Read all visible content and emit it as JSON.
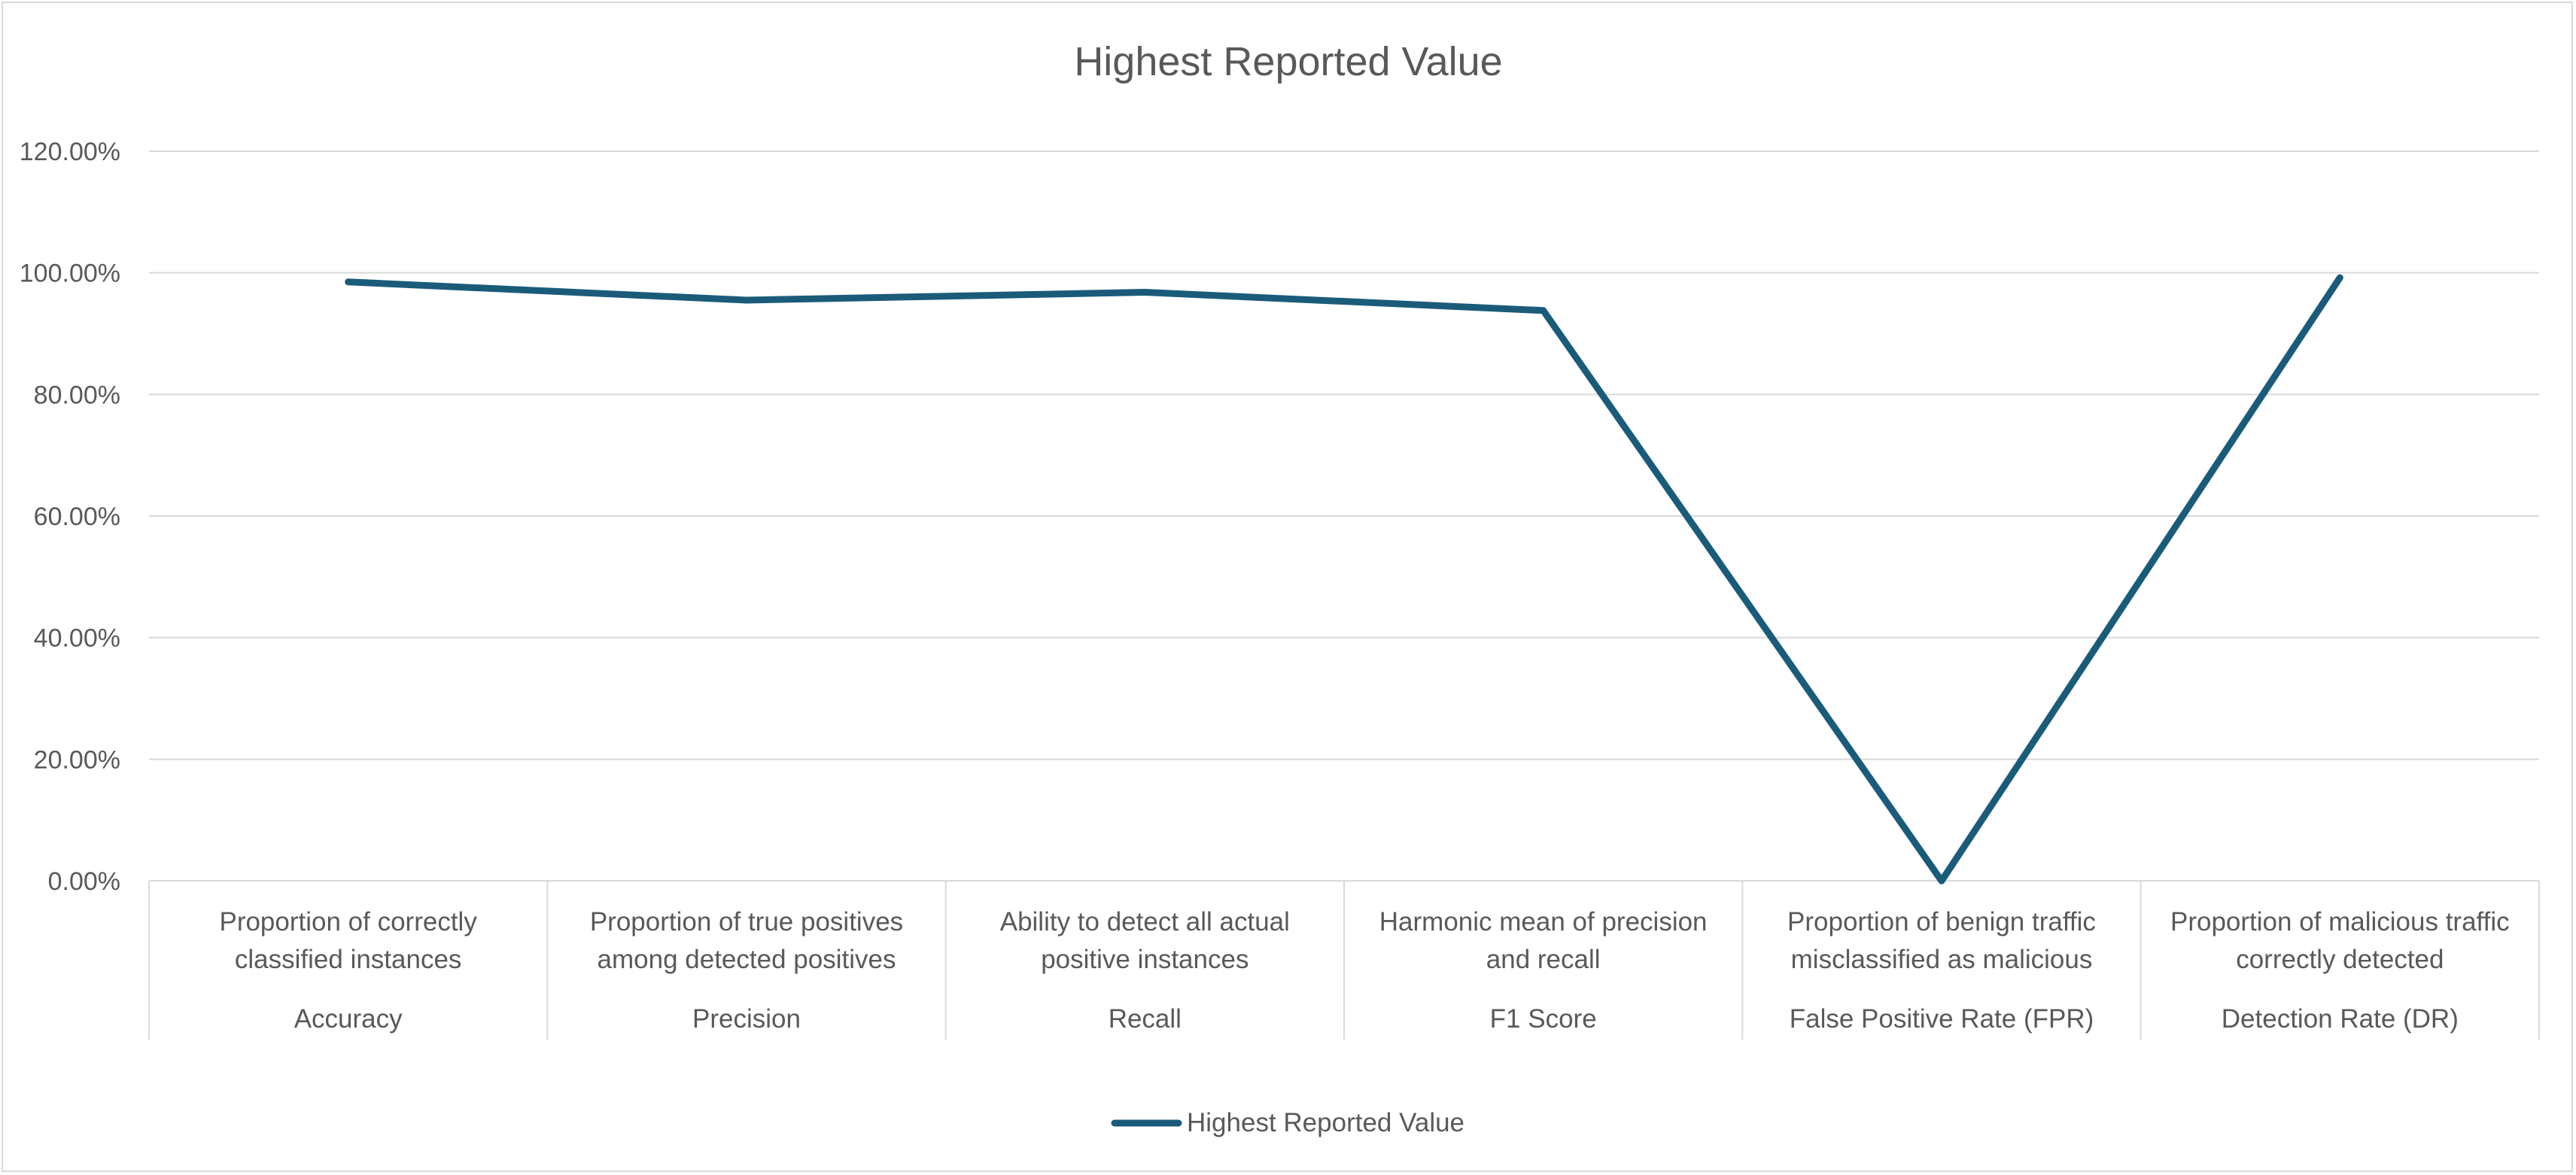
{
  "chart_data": {
    "type": "line",
    "title": "Highest Reported Value",
    "xlabel": "",
    "ylabel": "",
    "ylim": [
      0,
      1.2
    ],
    "y_ticks": [
      "0.00%",
      "20.00%",
      "40.00%",
      "60.00%",
      "80.00%",
      "100.00%",
      "120.00%"
    ],
    "y_tick_values": [
      0,
      0.2,
      0.4,
      0.6,
      0.8,
      1.0,
      1.2
    ],
    "grid": true,
    "legend_position": "bottom",
    "categories": [
      {
        "description": [
          "Proportion of correctly",
          "classified instances"
        ],
        "metric": "Accuracy"
      },
      {
        "description": [
          "Proportion of true positives",
          "among detected positives"
        ],
        "metric": "Precision"
      },
      {
        "description": [
          "Ability to detect all actual",
          "positive instances"
        ],
        "metric": "Recall"
      },
      {
        "description": [
          "Harmonic mean of precision",
          "and recall"
        ],
        "metric": "F1 Score"
      },
      {
        "description": [
          "Proportion of benign traffic",
          "misclassified as malicious"
        ],
        "metric": "False Positive Rate (FPR)"
      },
      {
        "description": [
          "Proportion of malicious traffic",
          "correctly detected"
        ],
        "metric": "Detection Rate (DR)"
      }
    ],
    "series": [
      {
        "name": "Highest Reported Value",
        "color": "#1b5b7a",
        "values": [
          0.985,
          0.955,
          0.968,
          0.938,
          0.0,
          0.992
        ]
      }
    ]
  }
}
